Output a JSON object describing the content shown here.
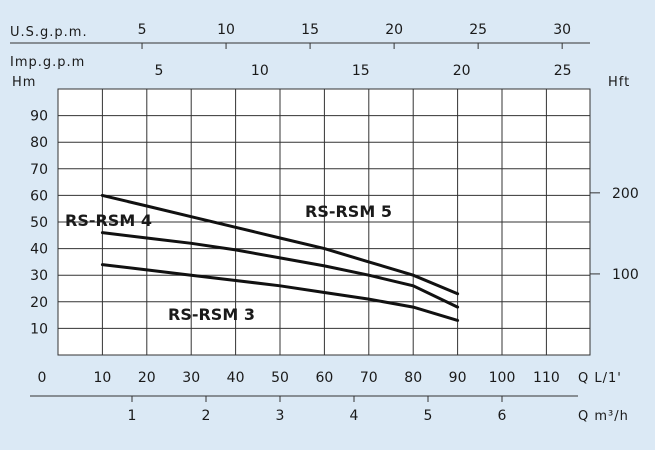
{
  "chart_data": {
    "type": "line",
    "x_unit_label": "Q L/1'",
    "x_ticks": [
      0,
      10,
      20,
      30,
      40,
      50,
      60,
      70,
      80,
      90,
      100,
      110
    ],
    "xlim": [
      0,
      120
    ],
    "y_unit_label": "Hm",
    "y_ticks": [
      10,
      20,
      30,
      40,
      50,
      60,
      70,
      80,
      90
    ],
    "ylim": [
      0,
      100
    ],
    "grid": true,
    "top_axes": [
      {
        "label": "U.S.g.p.m.",
        "ticks": [
          5,
          10,
          15,
          20,
          25,
          30
        ]
      },
      {
        "label": "Imp.g.p.m",
        "ticks": [
          5,
          10,
          15,
          20,
          25
        ]
      }
    ],
    "bottom_axis": {
      "label": "Q m³/h",
      "ticks": [
        1,
        2,
        3,
        4,
        5,
        6
      ]
    },
    "right_axis": {
      "label": "Hft",
      "ticks": [
        100,
        200
      ]
    },
    "series": [
      {
        "name": "RS-RSM 5",
        "x": [
          10,
          20,
          30,
          40,
          50,
          60,
          70,
          80,
          90
        ],
        "values": [
          60,
          56,
          52,
          48,
          44,
          40,
          35,
          30,
          23
        ]
      },
      {
        "name": "RS-RSM 4",
        "x": [
          10,
          20,
          30,
          40,
          50,
          60,
          70,
          80,
          90
        ],
        "values": [
          46,
          44,
          42,
          39.5,
          36.5,
          33.5,
          30,
          26,
          18
        ]
      },
      {
        "name": "RS-RSM 3",
        "x": [
          10,
          20,
          30,
          40,
          50,
          60,
          70,
          80,
          90
        ],
        "values": [
          34,
          32,
          30,
          28,
          26,
          23.5,
          21,
          18,
          13
        ]
      }
    ]
  }
}
